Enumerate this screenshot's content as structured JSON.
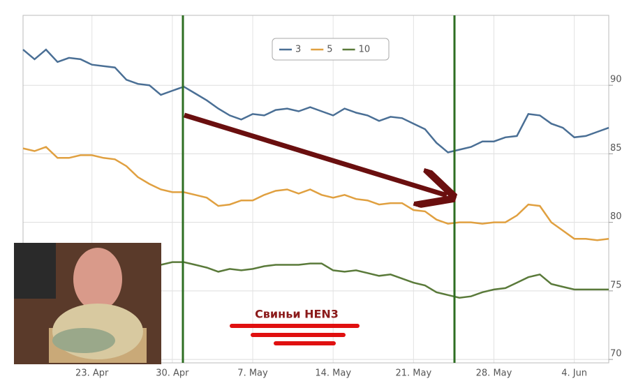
{
  "chart_data": {
    "type": "line",
    "annotation": "Свиньи HEN3",
    "categories": [
      null,
      null,
      null,
      null,
      null,
      null,
      "23. Apr",
      null,
      null,
      null,
      null,
      null,
      null,
      "30. Apr",
      null,
      null,
      null,
      null,
      null,
      null,
      "7. May",
      null,
      null,
      null,
      null,
      null,
      null,
      "14. May",
      null,
      null,
      null,
      null,
      null,
      null,
      "21. May",
      null,
      null,
      null,
      null,
      null,
      null,
      "28. May",
      null,
      null,
      null,
      null,
      null,
      null,
      "4. Jun",
      null,
      null,
      null
    ],
    "series": [
      {
        "name": "3",
        "color": "#4a6f95",
        "values": [
          92.6,
          91.9,
          92.6,
          91.7,
          92.0,
          91.9,
          91.5,
          91.4,
          91.3,
          90.4,
          90.1,
          90.0,
          89.3,
          89.6,
          89.9,
          89.4,
          88.9,
          88.3,
          87.8,
          87.5,
          87.9,
          87.8,
          88.2,
          88.3,
          88.1,
          88.4,
          88.1,
          87.8,
          88.3,
          88.0,
          87.8,
          87.4,
          87.7,
          87.6,
          87.2,
          86.8,
          85.8,
          85.1,
          85.3,
          85.5,
          85.9,
          85.9,
          86.2,
          86.3,
          87.9,
          87.8,
          87.2,
          86.9,
          86.2,
          86.3,
          86.6,
          86.9
        ]
      },
      {
        "name": "5",
        "color": "#e0a040",
        "values": [
          85.4,
          85.2,
          85.5,
          84.7,
          84.7,
          84.9,
          84.9,
          84.7,
          84.6,
          84.1,
          83.3,
          82.8,
          82.4,
          82.2,
          82.2,
          82.0,
          81.8,
          81.2,
          81.3,
          81.6,
          81.6,
          82.0,
          82.3,
          82.4,
          82.1,
          82.4,
          82.0,
          81.8,
          82.0,
          81.7,
          81.6,
          81.3,
          81.4,
          81.4,
          80.9,
          80.8,
          80.2,
          79.9,
          80.0,
          80.0,
          79.9,
          80.0,
          80.0,
          80.5,
          81.3,
          81.2,
          80.0,
          79.4,
          78.8,
          78.8,
          78.7,
          78.8
        ]
      },
      {
        "name": "10",
        "color": "#5a7a3a",
        "values": [
          null,
          null,
          null,
          null,
          null,
          null,
          null,
          null,
          null,
          null,
          null,
          null,
          76.9,
          77.1,
          77.1,
          76.9,
          76.7,
          76.4,
          76.6,
          76.5,
          76.6,
          76.8,
          76.9,
          76.9,
          76.9,
          77.0,
          77.0,
          76.5,
          76.4,
          76.5,
          76.3,
          76.1,
          76.2,
          75.9,
          75.6,
          75.4,
          74.9,
          74.7,
          74.5,
          74.6,
          74.9,
          75.1,
          75.2,
          75.6,
          76.0,
          76.2,
          75.5,
          75.3,
          75.1,
          75.1,
          75.1,
          75.1
        ]
      }
    ],
    "ylim": [
      69.75,
      95.1
    ],
    "yticks": [
      70,
      75,
      80,
      85,
      90
    ],
    "grid": true,
    "legend": "top"
  }
}
